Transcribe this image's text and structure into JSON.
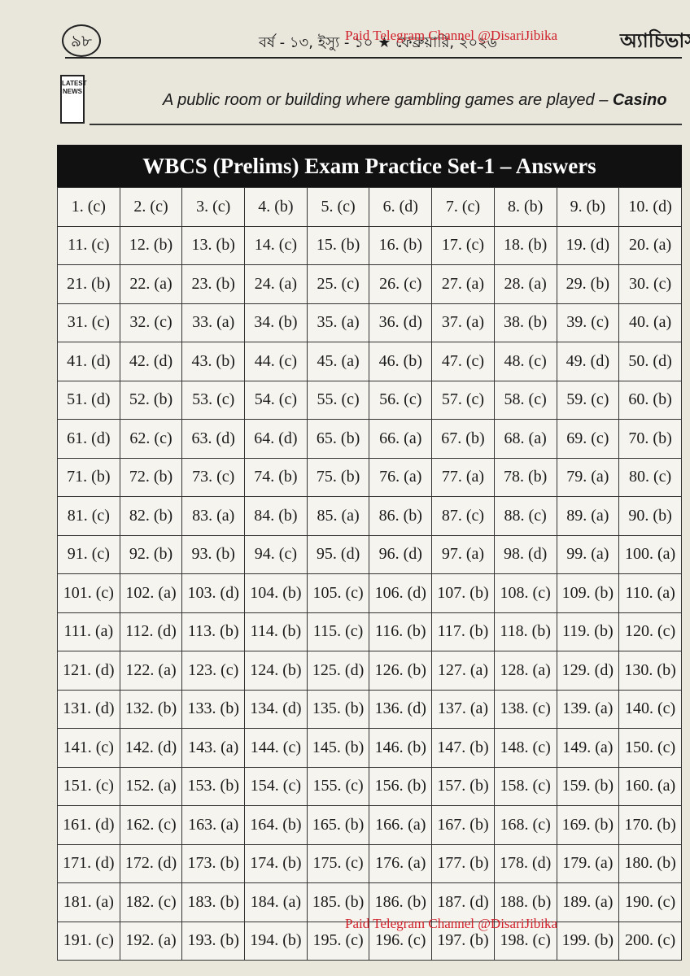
{
  "header": {
    "page_number": "৯৮",
    "issue": "বর্ষ - ১৩, ইস্যু - ১০ ★ ফেব্রুয়ারি, ২০২৬",
    "brand": "অ্যাচিভার্স",
    "watermarks": [
      "Paid Telegram Channel @DisariJibika",
      "Paid Telegram Channel @DisariJibika"
    ],
    "icon": "LATEST NEWS"
  },
  "tagline": {
    "text": "A public room or building where gambling games are played –",
    "answer": "Casino"
  },
  "table": {
    "title": "WBCS (Prelims) Exam Practice Set-1 – Answers",
    "rows": [
      [
        "1. (c)",
        "2. (c)",
        "3. (c)",
        "4. (b)",
        "5. (c)",
        "6. (d)",
        "7. (c)",
        "8. (b)",
        "9. (b)",
        "10. (d)"
      ],
      [
        "11. (c)",
        "12. (b)",
        "13. (b)",
        "14. (c)",
        "15. (b)",
        "16. (b)",
        "17. (c)",
        "18. (b)",
        "19. (d)",
        "20. (a)"
      ],
      [
        "21. (b)",
        "22. (a)",
        "23. (b)",
        "24. (a)",
        "25. (c)",
        "26. (c)",
        "27. (a)",
        "28. (a)",
        "29. (b)",
        "30. (c)"
      ],
      [
        "31. (c)",
        "32. (c)",
        "33. (a)",
        "34. (b)",
        "35. (a)",
        "36. (d)",
        "37. (a)",
        "38. (b)",
        "39. (c)",
        "40. (a)"
      ],
      [
        "41. (d)",
        "42. (d)",
        "43. (b)",
        "44. (c)",
        "45. (a)",
        "46. (b)",
        "47. (c)",
        "48. (c)",
        "49. (d)",
        "50. (d)"
      ],
      [
        "51. (d)",
        "52. (b)",
        "53. (c)",
        "54. (c)",
        "55. (c)",
        "56. (c)",
        "57. (c)",
        "58. (c)",
        "59. (c)",
        "60. (b)"
      ],
      [
        "61. (d)",
        "62. (c)",
        "63. (d)",
        "64. (d)",
        "65. (b)",
        "66. (a)",
        "67. (b)",
        "68. (a)",
        "69. (c)",
        "70. (b)"
      ],
      [
        "71. (b)",
        "72. (b)",
        "73. (c)",
        "74. (b)",
        "75. (b)",
        "76. (a)",
        "77. (a)",
        "78. (b)",
        "79. (a)",
        "80. (c)"
      ],
      [
        "81. (c)",
        "82. (b)",
        "83. (a)",
        "84. (b)",
        "85. (a)",
        "86. (b)",
        "87. (c)",
        "88. (c)",
        "89. (a)",
        "90. (b)"
      ],
      [
        "91. (c)",
        "92. (b)",
        "93. (b)",
        "94. (c)",
        "95. (d)",
        "96. (d)",
        "97. (a)",
        "98. (d)",
        "99. (a)",
        "100. (a)"
      ],
      [
        "101. (c)",
        "102. (a)",
        "103. (d)",
        "104. (b)",
        "105. (c)",
        "106. (d)",
        "107. (b)",
        "108. (c)",
        "109. (b)",
        "110. (a)"
      ],
      [
        "111. (a)",
        "112. (d)",
        "113. (b)",
        "114. (b)",
        "115. (c)",
        "116. (b)",
        "117. (b)",
        "118. (b)",
        "119. (b)",
        "120. (c)"
      ],
      [
        "121. (d)",
        "122. (a)",
        "123. (c)",
        "124. (b)",
        "125. (d)",
        "126. (b)",
        "127. (a)",
        "128. (a)",
        "129. (d)",
        "130. (b)"
      ],
      [
        "131. (d)",
        "132. (b)",
        "133. (b)",
        "134. (d)",
        "135. (b)",
        "136. (d)",
        "137. (a)",
        "138. (c)",
        "139. (a)",
        "140. (c)"
      ],
      [
        "141. (c)",
        "142. (d)",
        "143. (a)",
        "144. (c)",
        "145. (b)",
        "146. (b)",
        "147. (b)",
        "148. (c)",
        "149. (a)",
        "150. (c)"
      ],
      [
        "151. (c)",
        "152. (a)",
        "153. (b)",
        "154. (c)",
        "155. (c)",
        "156. (b)",
        "157. (b)",
        "158. (c)",
        "159. (b)",
        "160. (a)"
      ],
      [
        "161. (d)",
        "162. (c)",
        "163. (a)",
        "164. (b)",
        "165. (b)",
        "166. (a)",
        "167. (b)",
        "168. (c)",
        "169. (b)",
        "170. (b)"
      ],
      [
        "171. (d)",
        "172. (d)",
        "173. (b)",
        "174. (b)",
        "175. (c)",
        "176. (a)",
        "177. (b)",
        "178. (d)",
        "179. (a)",
        "180. (b)"
      ],
      [
        "181. (a)",
        "182. (c)",
        "183. (b)",
        "184. (a)",
        "185. (b)",
        "186. (b)",
        "187. (d)",
        "188. (b)",
        "189. (a)",
        "190. (c)"
      ],
      [
        "191. (c)",
        "192. (a)",
        "193. (b)",
        "194. (b)",
        "195. (c)",
        "196. (c)",
        "197. (b)",
        "198. (c)",
        "199. (b)",
        "200. (c)"
      ]
    ]
  }
}
